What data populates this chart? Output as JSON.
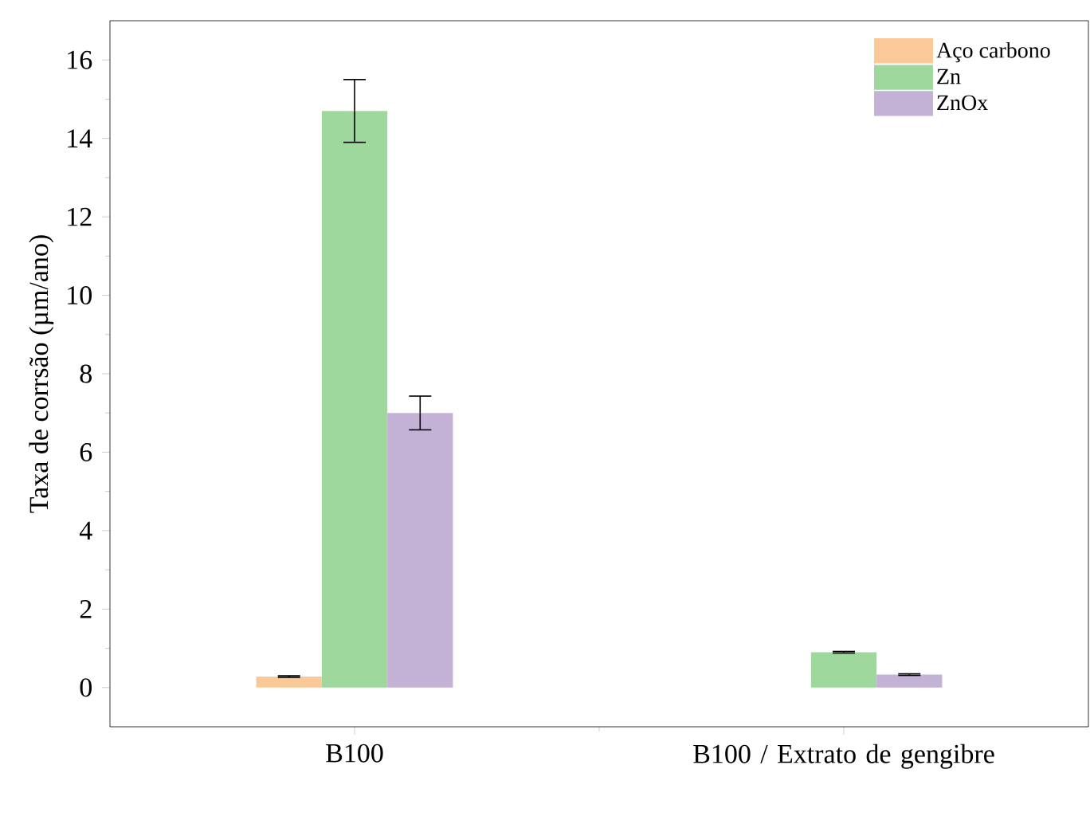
{
  "chart_data": {
    "type": "bar",
    "ylabel": "Taxa de corrsão (µm/ano)",
    "categories": [
      "B100",
      "B100 / Extrato de gengibre"
    ],
    "series": [
      {
        "name": "Aço carbono",
        "color": "#fbc997",
        "values": [
          0.28,
          null
        ],
        "errors": [
          0.02,
          null
        ]
      },
      {
        "name": "Zn",
        "color": "#9fd89c",
        "values": [
          14.7,
          0.9
        ],
        "errors": [
          0.8,
          0.02
        ]
      },
      {
        "name": "ZnOx",
        "color": "#c3b2d6",
        "values": [
          7.0,
          0.33
        ],
        "errors": [
          0.43,
          0.02
        ]
      }
    ],
    "ylim": [
      -1,
      17
    ],
    "yticks": [
      0,
      2,
      4,
      6,
      8,
      10,
      12,
      14,
      16
    ],
    "legend": "top right"
  }
}
